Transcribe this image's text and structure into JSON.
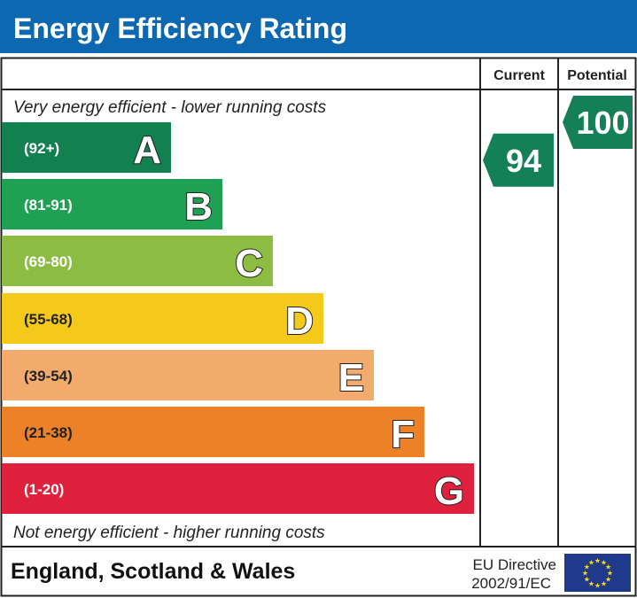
{
  "title": "Energy Efficiency Rating",
  "colors": {
    "header": "#0b68b1",
    "arrow": "#138058",
    "eu_flag": "#1f3a8a",
    "eu_stars": "#ffdd00"
  },
  "chart_data": {
    "type": "bar",
    "columns": {
      "current": "Current",
      "potential": "Potential"
    },
    "top_note": "Very energy efficient - lower running costs",
    "bottom_note": "Not energy efficient - higher running costs",
    "bands": [
      {
        "letter": "A",
        "range": "(92+)",
        "color": "#12804f"
      },
      {
        "letter": "B",
        "range": "(81-91)",
        "color": "#1ea152"
      },
      {
        "letter": "C",
        "range": "(69-80)",
        "color": "#8dbc43"
      },
      {
        "letter": "D",
        "range": "(55-68)",
        "color": "#f4c91a"
      },
      {
        "letter": "E",
        "range": "(39-54)",
        "color": "#f2aa6d"
      },
      {
        "letter": "F",
        "range": "(21-38)",
        "color": "#ec8127"
      },
      {
        "letter": "G",
        "range": "(1-20)",
        "color": "#e0213d"
      }
    ],
    "current": 94,
    "potential": 100
  },
  "footer": {
    "country": "England, Scotland & Wales",
    "directive_line1": "EU Directive",
    "directive_line2": "2002/91/EC"
  }
}
